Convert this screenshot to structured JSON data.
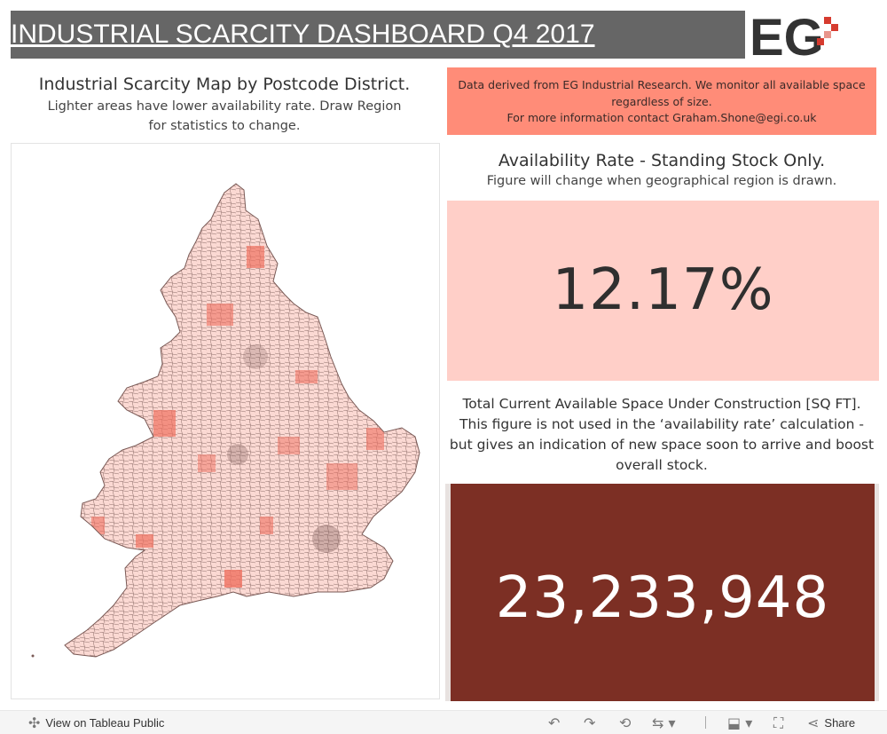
{
  "header": {
    "title": "INDUSTRIAL SCARCITY DASHBOARD Q4 2017",
    "logo_text": "EG"
  },
  "map": {
    "title": "Industrial Scarcity Map by Postcode District.",
    "subtitle": "Lighter areas have lower availability rate. Draw Region for statistics to change."
  },
  "info": {
    "line1": "Data derived from EG Industrial Research. We monitor all available space regardless of size.",
    "line2": "For more information contact Graham.Shone@egi.co.uk"
  },
  "availability": {
    "title": "Availability Rate - Standing Stock Only.",
    "subtitle": "Figure will change when geographical region is drawn.",
    "value": "12.17%"
  },
  "construction": {
    "title": "Total Current Available Space Under Construction [SQ FT].",
    "description": "This figure is not used in the ‘availability rate’ calculation - but gives an indication of new space soon to arrive and boost overall stock.",
    "value": "23,233,948"
  },
  "footer": {
    "view_label": "View on Tableau Public",
    "share_label": "Share",
    "icons": [
      "tableau-icon",
      "undo-icon",
      "redo-icon",
      "revert-icon",
      "refresh-icon",
      "download-icon",
      "fullscreen-icon",
      "share-icon"
    ]
  },
  "colors": {
    "title_bar": "#666666",
    "info_box": "#ff8c78",
    "rate_box": "#ffcfc8",
    "construction_box": "#7c2f24",
    "logo_accent": "#d63b2f",
    "map_light": "#fbd9d3",
    "map_dark": "#f07060"
  }
}
